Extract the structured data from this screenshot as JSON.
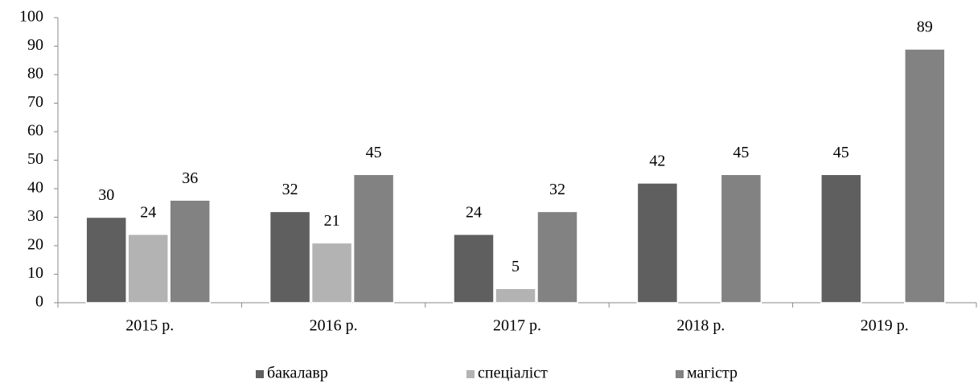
{
  "chart_data": {
    "type": "bar",
    "categories": [
      "2015 р.",
      "2016 р.",
      "2017 р.",
      "2018 р.",
      "2019 р."
    ],
    "series": [
      {
        "name": "бакалавр",
        "color": "#5f5f5f",
        "values": [
          30,
          32,
          24,
          42,
          45
        ]
      },
      {
        "name": "спеціаліст",
        "color": "#b3b3b3",
        "values": [
          24,
          21,
          5,
          null,
          null
        ]
      },
      {
        "name": "магістр",
        "color": "#828282",
        "values": [
          36,
          45,
          32,
          45,
          89
        ]
      }
    ],
    "ylim": [
      0,
      100
    ],
    "yticks": [
      0,
      10,
      20,
      30,
      40,
      50,
      60,
      70,
      80,
      90,
      100
    ],
    "grid": false,
    "legend": "bottom"
  }
}
